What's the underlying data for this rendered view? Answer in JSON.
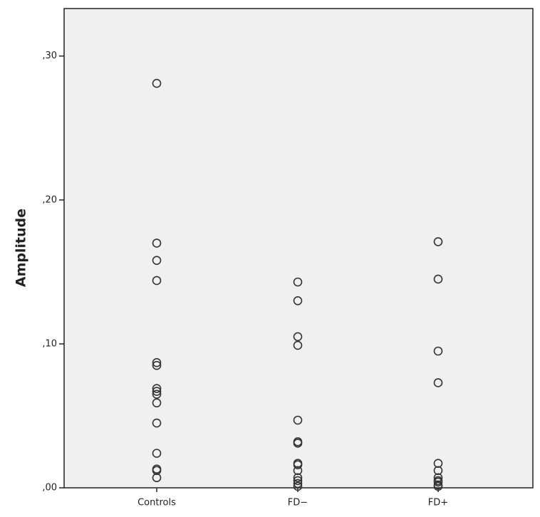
{
  "chart_data": {
    "type": "strip",
    "y_label": "Amplitude",
    "categories": [
      "Controls",
      "FD−",
      "FD+"
    ],
    "values": [
      [
        0.281,
        0.17,
        0.158,
        0.144,
        0.087,
        0.085,
        0.069,
        0.067,
        0.065,
        0.059,
        0.045,
        0.024,
        0.013,
        0.012,
        0.007
      ],
      [
        0.143,
        0.13,
        0.105,
        0.099,
        0.047,
        0.032,
        0.031,
        0.017,
        0.016,
        0.012,
        0.007,
        0.005,
        0.003,
        0.001
      ],
      [
        0.171,
        0.145,
        0.095,
        0.073,
        0.017,
        0.012,
        0.007,
        0.005,
        0.004,
        0.002,
        0.001
      ]
    ],
    "color": "#333333",
    "ylim": [
      0,
      0.333
    ],
    "yticks": [
      {
        "value": 0,
        "label": ",00"
      },
      {
        "value": 0.1,
        "label": ",10"
      },
      {
        "value": 0.2,
        "label": ",20"
      },
      {
        "value": 0.3,
        "label": ",30"
      }
    ]
  }
}
